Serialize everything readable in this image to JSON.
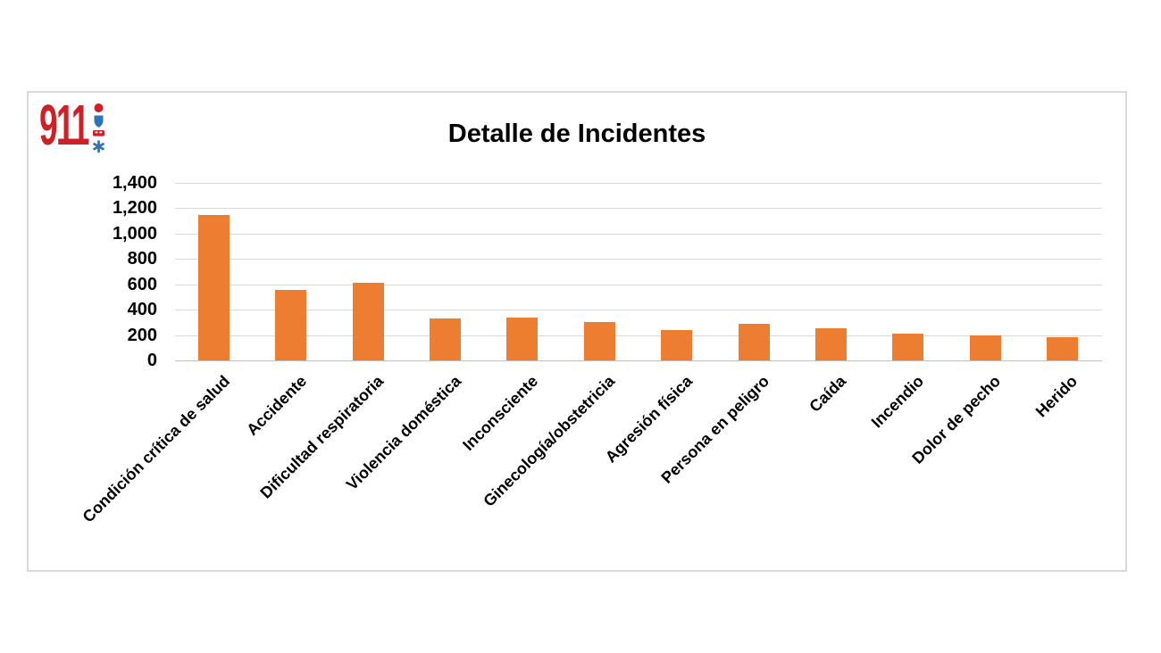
{
  "logo": {
    "text": "911",
    "color": "#ce2127",
    "icons": [
      {
        "name": "dot-icon",
        "color": "#ce2127"
      },
      {
        "name": "shield-icon",
        "color": "#2c74b8"
      },
      {
        "name": "vehicle-icon",
        "color": "#ce2127"
      },
      {
        "name": "star-of-life-icon",
        "color": "#2c74b8"
      }
    ]
  },
  "chart_data": {
    "type": "bar",
    "title": "Detalle de Incidentes",
    "categories": [
      "Condición crítica de salud",
      "Accidente",
      "Dificultad respiratoria",
      "Violencia doméstica",
      "Inconsciente",
      "Ginecología/obstetricia",
      "Agresión física",
      "Persona en peligro",
      "Caída",
      "Incendio",
      "Dolor de pecho",
      "Herido"
    ],
    "values": [
      1150,
      555,
      610,
      330,
      335,
      305,
      240,
      285,
      250,
      212,
      198,
      185
    ],
    "xlabel": "",
    "ylabel": "",
    "ylim": [
      0,
      1400
    ],
    "ytick_interval": 200,
    "ytick_labels": [
      "0",
      "200",
      "400",
      "600",
      "800",
      "1,000",
      "1,200",
      "1,400"
    ],
    "grid": true,
    "legend": "none",
    "bar_color": "#ED7D31",
    "gridline_color": "#D9D9D9",
    "baseline_color": "#BFBFBF",
    "text_color": "#000000"
  }
}
